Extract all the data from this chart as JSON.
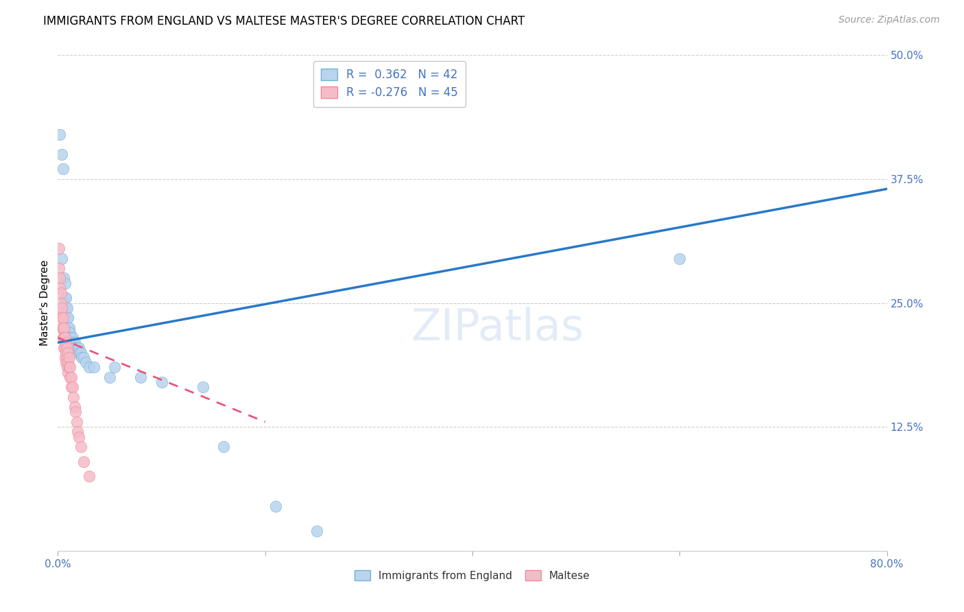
{
  "title": "IMMIGRANTS FROM ENGLAND VS MALTESE MASTER'S DEGREE CORRELATION CHART",
  "source": "Source: ZipAtlas.com",
  "ylabel": "Master's Degree",
  "xlim": [
    0.0,
    0.8
  ],
  "ylim": [
    0.0,
    0.5
  ],
  "legend_blue_R": "0.362",
  "legend_blue_N": "42",
  "legend_pink_R": "-0.276",
  "legend_pink_N": "45",
  "blue_line_x": [
    0.0,
    0.8
  ],
  "blue_line_y": [
    0.21,
    0.365
  ],
  "pink_line_x": [
    0.0,
    0.2
  ],
  "pink_line_y": [
    0.215,
    0.13
  ],
  "blue_dots": [
    [
      0.002,
      0.42
    ],
    [
      0.004,
      0.4
    ],
    [
      0.005,
      0.385
    ],
    [
      0.004,
      0.295
    ],
    [
      0.006,
      0.275
    ],
    [
      0.007,
      0.27
    ],
    [
      0.007,
      0.255
    ],
    [
      0.008,
      0.255
    ],
    [
      0.008,
      0.245
    ],
    [
      0.009,
      0.245
    ],
    [
      0.009,
      0.235
    ],
    [
      0.01,
      0.235
    ],
    [
      0.01,
      0.225
    ],
    [
      0.011,
      0.225
    ],
    [
      0.011,
      0.215
    ],
    [
      0.012,
      0.22
    ],
    [
      0.013,
      0.215
    ],
    [
      0.014,
      0.215
    ],
    [
      0.015,
      0.21
    ],
    [
      0.015,
      0.205
    ],
    [
      0.016,
      0.21
    ],
    [
      0.016,
      0.205
    ],
    [
      0.017,
      0.205
    ],
    [
      0.018,
      0.2
    ],
    [
      0.019,
      0.205
    ],
    [
      0.02,
      0.205
    ],
    [
      0.021,
      0.2
    ],
    [
      0.022,
      0.2
    ],
    [
      0.023,
      0.195
    ],
    [
      0.025,
      0.195
    ],
    [
      0.027,
      0.19
    ],
    [
      0.03,
      0.185
    ],
    [
      0.035,
      0.185
    ],
    [
      0.05,
      0.175
    ],
    [
      0.055,
      0.185
    ],
    [
      0.08,
      0.175
    ],
    [
      0.1,
      0.17
    ],
    [
      0.14,
      0.165
    ],
    [
      0.16,
      0.105
    ],
    [
      0.21,
      0.045
    ],
    [
      0.25,
      0.02
    ],
    [
      0.6,
      0.295
    ]
  ],
  "pink_dots": [
    [
      0.001,
      0.305
    ],
    [
      0.001,
      0.285
    ],
    [
      0.002,
      0.275
    ],
    [
      0.002,
      0.265
    ],
    [
      0.003,
      0.26
    ],
    [
      0.003,
      0.25
    ],
    [
      0.003,
      0.24
    ],
    [
      0.004,
      0.245
    ],
    [
      0.004,
      0.235
    ],
    [
      0.004,
      0.225
    ],
    [
      0.005,
      0.235
    ],
    [
      0.005,
      0.225
    ],
    [
      0.005,
      0.215
    ],
    [
      0.006,
      0.225
    ],
    [
      0.006,
      0.215
    ],
    [
      0.006,
      0.205
    ],
    [
      0.006,
      0.215
    ],
    [
      0.007,
      0.215
    ],
    [
      0.007,
      0.205
    ],
    [
      0.007,
      0.195
    ],
    [
      0.008,
      0.21
    ],
    [
      0.008,
      0.2
    ],
    [
      0.008,
      0.19
    ],
    [
      0.009,
      0.205
    ],
    [
      0.009,
      0.195
    ],
    [
      0.009,
      0.185
    ],
    [
      0.01,
      0.2
    ],
    [
      0.01,
      0.19
    ],
    [
      0.01,
      0.18
    ],
    [
      0.011,
      0.195
    ],
    [
      0.011,
      0.185
    ],
    [
      0.012,
      0.185
    ],
    [
      0.012,
      0.175
    ],
    [
      0.013,
      0.175
    ],
    [
      0.013,
      0.165
    ],
    [
      0.014,
      0.165
    ],
    [
      0.015,
      0.155
    ],
    [
      0.016,
      0.145
    ],
    [
      0.017,
      0.14
    ],
    [
      0.018,
      0.13
    ],
    [
      0.019,
      0.12
    ],
    [
      0.02,
      0.115
    ],
    [
      0.022,
      0.105
    ],
    [
      0.025,
      0.09
    ],
    [
      0.03,
      0.075
    ]
  ]
}
